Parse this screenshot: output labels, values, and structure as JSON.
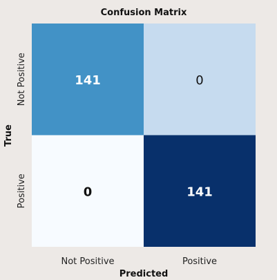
{
  "chart_data": {
    "type": "heatmap",
    "title": "Confusion Matrix",
    "xlabel": "Predicted",
    "ylabel": "True",
    "x_categories": [
      "Not Positive",
      "Positive"
    ],
    "y_categories": [
      "Not Positive",
      "Positive"
    ],
    "cells": [
      {
        "row": 0,
        "col": 0,
        "value": 141,
        "label": "141",
        "color": "#4292c6",
        "text_color": "#ffffff",
        "bold": true
      },
      {
        "row": 0,
        "col": 1,
        "value": 0,
        "label": "0",
        "color": "#c6dbef",
        "text_color": "#111111",
        "bold": false
      },
      {
        "row": 1,
        "col": 0,
        "value": 0,
        "label": "0",
        "color": "#f7fbff",
        "text_color": "#111111",
        "bold": true
      },
      {
        "row": 1,
        "col": 1,
        "value": 141,
        "label": "141",
        "color": "#08306b",
        "text_color": "#ffffff",
        "bold": true
      }
    ],
    "colorbar": false,
    "grid": false
  }
}
